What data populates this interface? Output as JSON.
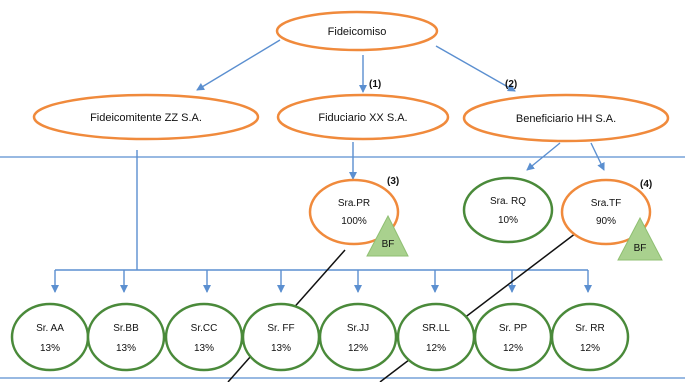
{
  "nodes": {
    "fideicomiso": "Fideicomiso",
    "fideicomitente": "Fideicomitente ZZ S.A.",
    "fiduciario": "Fiduciario XX S.A.",
    "beneficiario": "Beneficiario HH S.A.",
    "sra_pr": {
      "name": "Sra.PR",
      "pct": "100%"
    },
    "sra_rq": {
      "name": "Sra. RQ",
      "pct": "10%"
    },
    "sra_tf": {
      "name": "Sra.TF",
      "pct": "90%"
    },
    "people": [
      {
        "name": "Sr. AA",
        "pct": "13%"
      },
      {
        "name": "Sr.BB",
        "pct": "13%"
      },
      {
        "name": "Sr.CC",
        "pct": "13%"
      },
      {
        "name": "Sr. FF",
        "pct": "13%"
      },
      {
        "name": "Sr.JJ",
        "pct": "12%"
      },
      {
        "name": "SR.LL",
        "pct": "12%"
      },
      {
        "name": "Sr. PP",
        "pct": "12%"
      },
      {
        "name": "Sr. RR",
        "pct": "12%"
      }
    ]
  },
  "markers": {
    "m1": "(1)",
    "m2": "(2)",
    "m3": "(3)",
    "m4": "(4)"
  },
  "bf_label": "BF",
  "colors": {
    "orange": "#f08a3c",
    "green": "#4a8a3a",
    "arrow": "#5b8fd0",
    "triangle": "#a9d18e"
  }
}
